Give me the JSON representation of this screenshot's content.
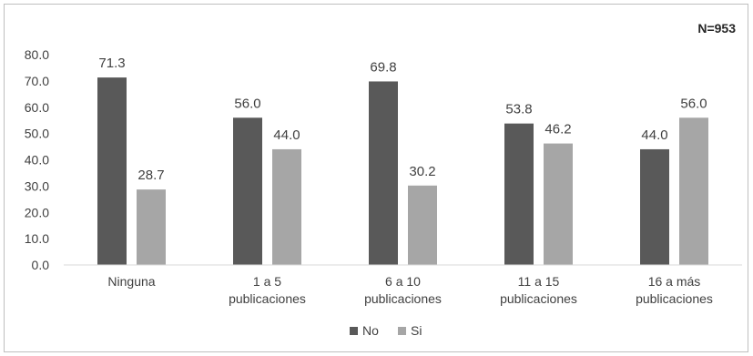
{
  "chart_data": {
    "type": "bar",
    "annotation": "N=953",
    "categories": [
      [
        "Ninguna"
      ],
      [
        "1 a 5",
        "publicaciones"
      ],
      [
        "6 a 10",
        "publicaciones"
      ],
      [
        "11 a 15",
        "publicaciones"
      ],
      [
        "16 a más",
        "publicaciones"
      ]
    ],
    "series": [
      {
        "name": "No",
        "color": "#595959",
        "values": [
          71.3,
          56.0,
          69.8,
          53.8,
          44.0
        ]
      },
      {
        "name": "Si",
        "color": "#a6a6a6",
        "values": [
          28.7,
          44.0,
          30.2,
          46.2,
          56.0
        ]
      }
    ],
    "ylim": [
      0,
      80
    ],
    "yticks": [
      "0.0",
      "10.0",
      "20.0",
      "30.0",
      "40.0",
      "50.0",
      "60.0",
      "70.0",
      "80.0"
    ],
    "grid": false,
    "legend": "bottom-center",
    "title": "",
    "xlabel": "",
    "ylabel": ""
  }
}
